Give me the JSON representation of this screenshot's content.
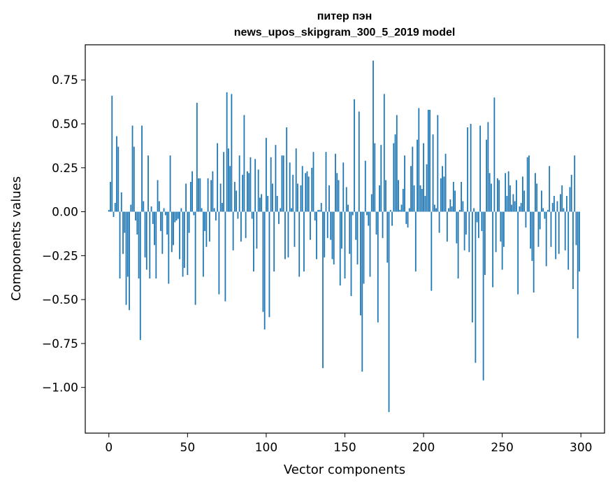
{
  "chart_data": {
    "type": "bar",
    "title": "питер пэн",
    "subtitle": "news_upos_skipgram_300_5_2019 model",
    "xlabel": "Vector components",
    "ylabel": "Components values",
    "xlim": [
      -15,
      315
    ],
    "ylim": [
      -1.26,
      0.95
    ],
    "xticks": [
      0,
      50,
      100,
      150,
      200,
      250,
      300
    ],
    "xtick_labels": [
      "0",
      "50",
      "100",
      "150",
      "200",
      "250",
      "300"
    ],
    "yticks": [
      0.75,
      0.5,
      0.25,
      0.0,
      -0.25,
      -0.5,
      -0.75,
      -1.0
    ],
    "ytick_labels": [
      "0.75",
      "0.50",
      "0.25",
      "0.00",
      "−0.25",
      "−0.50",
      "−0.75",
      "−1.00"
    ],
    "grid": false,
    "bar_color": "#1f77b4",
    "x_start": 0,
    "values": [
      0.01,
      0.17,
      0.66,
      -0.03,
      0.05,
      0.43,
      0.37,
      -0.38,
      0.11,
      -0.24,
      -0.12,
      -0.53,
      -0.37,
      -0.56,
      0.04,
      0.49,
      0.37,
      -0.05,
      -0.13,
      -0.38,
      -0.73,
      0.49,
      0.06,
      -0.26,
      -0.33,
      0.32,
      -0.38,
      0.03,
      -0.07,
      -0.19,
      -0.38,
      0.18,
      0.06,
      -0.11,
      -0.24,
      0.02,
      -0.02,
      -0.13,
      -0.41,
      0.32,
      -0.23,
      -0.19,
      -0.06,
      -0.05,
      -0.04,
      -0.27,
      0.02,
      -0.37,
      -0.32,
      0.16,
      -0.36,
      -0.12,
      0.17,
      0.23,
      -0.02,
      -0.53,
      0.62,
      0.19,
      0.19,
      0.02,
      -0.37,
      -0.11,
      -0.2,
      0.19,
      -0.17,
      0.18,
      0.23,
      0.02,
      -0.05,
      0.39,
      -0.47,
      0.16,
      0.05,
      0.34,
      -0.51,
      0.68,
      0.36,
      0.26,
      0.67,
      -0.22,
      0.17,
      0.12,
      -0.04,
      0.32,
      -0.17,
      0.21,
      0.55,
      -0.15,
      0.23,
      0.22,
      0.31,
      -0.04,
      -0.34,
      0.3,
      -0.21,
      0.24,
      0.08,
      0.1,
      -0.57,
      -0.67,
      0.42,
      0.09,
      -0.6,
      0.31,
      0.16,
      -0.34,
      0.38,
      0.09,
      -0.07,
      0.02,
      0.32,
      0.32,
      -0.27,
      0.48,
      -0.26,
      0.28,
      0.02,
      0.21,
      -0.2,
      0.36,
      0.16,
      -0.37,
      0.15,
      0.26,
      -0.34,
      0.22,
      0.23,
      0.2,
      -0.16,
      0.25,
      0.34,
      -0.05,
      -0.27,
      0.01,
      0.01,
      0.05,
      -0.89,
      -0.26,
      0.34,
      -0.15,
      0.15,
      -0.16,
      -0.27,
      -0.3,
      0.33,
      0.22,
      0.18,
      -0.42,
      -0.21,
      0.28,
      -0.38,
      0.14,
      0.04,
      -0.24,
      -0.48,
      -0.02,
      0.64,
      -0.16,
      -0.3,
      0.57,
      -0.59,
      -0.91,
      -0.41,
      0.29,
      -0.02,
      -0.08,
      -0.37,
      0.1,
      0.86,
      0.39,
      -0.13,
      -0.63,
      0.15,
      0.38,
      -0.15,
      0.67,
      0.18,
      -0.29,
      -1.14,
      0.01,
      -0.08,
      0.39,
      0.44,
      0.55,
      0.18,
      0.01,
      0.04,
      0.13,
      0.32,
      -0.07,
      -0.09,
      0.02,
      0.26,
      0.37,
      0.15,
      -0.34,
      0.41,
      0.59,
      0.15,
      0.13,
      0.39,
      0.09,
      0.27,
      0.58,
      0.58,
      -0.45,
      0.44,
      0.04,
      0.02,
      0.55,
      -0.12,
      0.19,
      0.26,
      0.2,
      0.33,
      -0.17,
      0.02,
      0.07,
      0.03,
      0.17,
      0.12,
      -0.18,
      -0.38,
      0.01,
      0.17,
      0.06,
      -0.22,
      -0.13,
      0.48,
      -0.23,
      0.5,
      -0.63,
      0.02,
      -0.86,
      -0.06,
      -0.15,
      0.49,
      -0.11,
      -0.96,
      -0.36,
      0.41,
      0.51,
      0.22,
      0.16,
      -0.43,
      0.65,
      -0.23,
      0.19,
      0.18,
      -0.17,
      -0.33,
      -0.2,
      0.22,
      0.09,
      0.23,
      0.15,
      0.04,
      0.1,
      0.06,
      0.18,
      -0.47,
      0.03,
      0.05,
      0.2,
      0.12,
      -0.09,
      0.31,
      0.32,
      -0.21,
      -0.28,
      -0.46,
      0.22,
      0.16,
      -0.2,
      -0.1,
      0.12,
      0.02,
      -0.04,
      -0.31,
      0.01,
      0.26,
      -0.2,
      0.05,
      0.09,
      -0.27,
      0.06,
      -0.24,
      0.1,
      0.15,
      0.02,
      -0.22,
      0.09,
      -0.33,
      0.14,
      0.21,
      -0.44,
      0.32,
      -0.19,
      -0.72,
      -0.34
    ]
  }
}
